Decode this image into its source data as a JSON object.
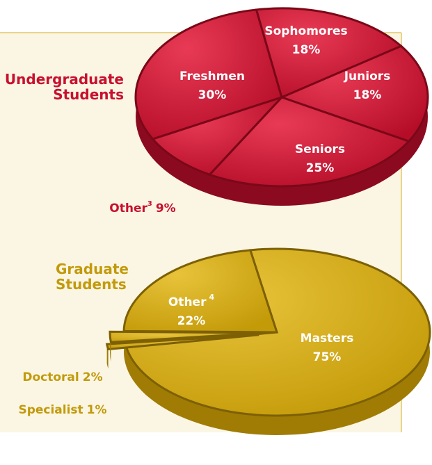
{
  "chart_data": [
    {
      "type": "pie",
      "title": "Undergraduate Students",
      "categories": [
        "Freshmen",
        "Sophomores",
        "Juniors",
        "Seniors",
        "Other"
      ],
      "category_superscripts": [
        null,
        null,
        null,
        null,
        "3"
      ],
      "values": [
        30,
        18,
        18,
        25,
        9
      ],
      "value_labels": [
        "30%",
        "18%",
        "18%",
        "25%",
        "9%"
      ],
      "color": "#c8102e"
    },
    {
      "type": "pie",
      "title": "Graduate Students",
      "categories": [
        "Masters",
        "Specialist",
        "Doctoral",
        "Other"
      ],
      "category_superscripts": [
        null,
        null,
        null,
        "4"
      ],
      "values": [
        75,
        1,
        2,
        22
      ],
      "value_labels": [
        "75%",
        "1%",
        "2%",
        "22%"
      ],
      "color": "#d4a90c"
    }
  ]
}
